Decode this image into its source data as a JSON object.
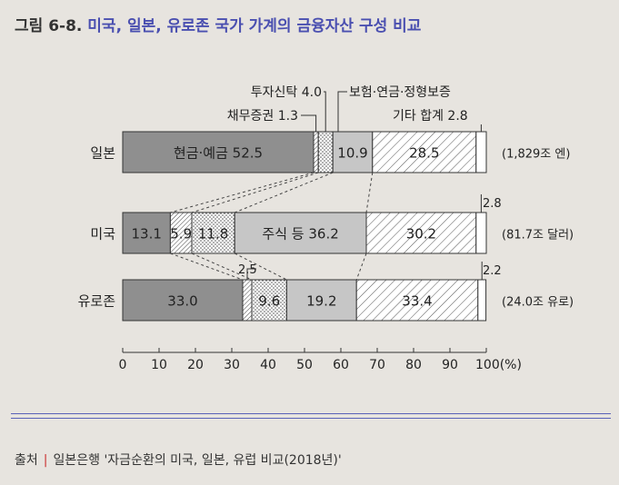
{
  "title": {
    "number": "그림 6-8.",
    "text": "미국, 일본, 유로존 국가 가계의 금융자산 구성 비교"
  },
  "chart_data": {
    "type": "bar",
    "stacked": true,
    "orientation": "horizontal",
    "xlabel": "",
    "ylabel": "",
    "xlim": [
      0,
      100
    ],
    "x_ticks": [
      "0",
      "10",
      "20",
      "30",
      "40",
      "50",
      "60",
      "70",
      "80",
      "90",
      "100(%)"
    ],
    "components": [
      {
        "key": "cash",
        "name": "현금·예금",
        "fill": "#8f8f8f"
      },
      {
        "key": "bond",
        "name": "채무증권",
        "fill": "hatch-dense"
      },
      {
        "key": "trust",
        "name": "투자신탁",
        "fill": "dots"
      },
      {
        "key": "stock",
        "name": "주식 등",
        "fill": "#c6c6c6"
      },
      {
        "key": "ins",
        "name": "보험·연금·정형보증",
        "fill": "hatch-wide"
      },
      {
        "key": "other",
        "name": "기타",
        "fill": "#ffffff"
      }
    ],
    "rows": [
      {
        "key": "japan",
        "label": "일본",
        "total": "(1,829조 엔)",
        "values": {
          "cash": 52.5,
          "bond": 1.3,
          "trust": 4.0,
          "stock": 10.9,
          "ins": 28.5,
          "other": 2.8
        },
        "labels": {
          "cash": "현금·예금  52.5",
          "bond": "",
          "trust": "",
          "stock": "10.9",
          "ins": "28.5",
          "other": ""
        }
      },
      {
        "key": "usa",
        "label": "미국",
        "total": "(81.7조 달러)",
        "values": {
          "cash": 13.1,
          "bond": 5.9,
          "trust": 11.8,
          "stock": 36.2,
          "ins": 30.2,
          "other": 2.8
        },
        "labels": {
          "cash": "13.1",
          "bond": "5.9",
          "trust": "11.8",
          "stock": "주식 등  36.2",
          "ins": "30.2",
          "other": ""
        }
      },
      {
        "key": "euro",
        "label": "유로존",
        "total": "(24.0조 유로)",
        "values": {
          "cash": 33.0,
          "bond": 2.5,
          "trust": 9.6,
          "stock": 19.2,
          "ins": 33.4,
          "other": 2.2
        },
        "labels": {
          "cash": "33.0",
          "bond": "",
          "trust": "9.6",
          "stock": "19.2",
          "ins": "33.4",
          "other": ""
        }
      }
    ],
    "annotations": [
      {
        "key": "trust_jp",
        "text": "투자신탁 4.0"
      },
      {
        "key": "bond_jp",
        "text": "채무증권 1.3"
      },
      {
        "key": "ins_jp",
        "text": "보험·연금·정형보증"
      },
      {
        "key": "other_jp",
        "text": "기타 합계 2.8"
      },
      {
        "key": "other_us",
        "text": "2.8"
      },
      {
        "key": "bond_eu",
        "text": "2.5"
      },
      {
        "key": "other_eu",
        "text": "2.2"
      }
    ]
  },
  "source": {
    "label": "출처",
    "text": "일본은행 '자금순환의 미국, 일본, 유럽 비교(2018년)'"
  }
}
